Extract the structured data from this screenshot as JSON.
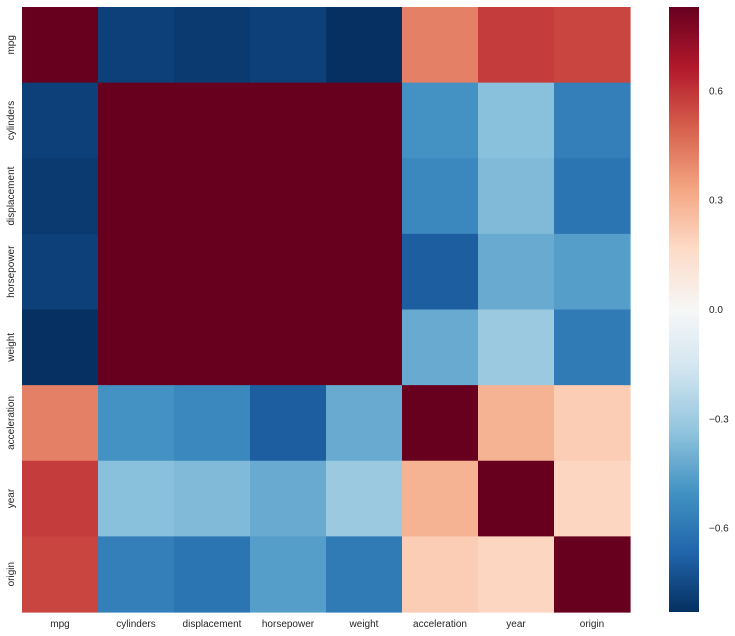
{
  "chart_data": {
    "type": "heatmap",
    "title": "",
    "xlabel": "",
    "ylabel": "",
    "x_categories": [
      "mpg",
      "cylinders",
      "displacement",
      "horsepower",
      "weight",
      "acceleration",
      "year",
      "origin"
    ],
    "y_categories": [
      "mpg",
      "cylinders",
      "displacement",
      "horsepower",
      "weight",
      "acceleration",
      "year",
      "origin"
    ],
    "values": [
      [
        1.0,
        -0.78,
        -0.8,
        -0.78,
        -0.83,
        0.42,
        0.58,
        0.56
      ],
      [
        -0.78,
        1.0,
        0.95,
        0.84,
        0.9,
        -0.5,
        -0.35,
        -0.57
      ],
      [
        -0.8,
        0.95,
        1.0,
        0.9,
        0.93,
        -0.54,
        -0.37,
        -0.61
      ],
      [
        -0.78,
        0.84,
        0.9,
        1.0,
        0.86,
        -0.69,
        -0.42,
        -0.46
      ],
      [
        -0.83,
        0.9,
        0.93,
        0.86,
        1.0,
        -0.42,
        -0.31,
        -0.59
      ],
      [
        0.42,
        -0.5,
        -0.54,
        -0.69,
        -0.42,
        1.0,
        0.29,
        0.21
      ],
      [
        0.58,
        -0.35,
        -0.37,
        -0.42,
        -0.31,
        0.29,
        1.0,
        0.18
      ],
      [
        0.56,
        -0.57,
        -0.61,
        -0.46,
        -0.59,
        0.21,
        0.18,
        1.0
      ]
    ],
    "colorscale": {
      "name": "RdBu_r",
      "vmin": -0.83,
      "vmax": 0.83,
      "stops": [
        "#053061",
        "#2166ac",
        "#4393c3",
        "#92c5de",
        "#d1e5f0",
        "#f7f7f7",
        "#fddbc7",
        "#f4a582",
        "#d6604d",
        "#b2182b",
        "#67001f"
      ]
    },
    "colorbar": {
      "ticks": [
        -0.6,
        -0.3,
        0.0,
        0.3,
        0.6
      ],
      "tick_labels": [
        "−0.6",
        "−0.3",
        "0.0",
        "0.3",
        "0.6"
      ]
    }
  }
}
